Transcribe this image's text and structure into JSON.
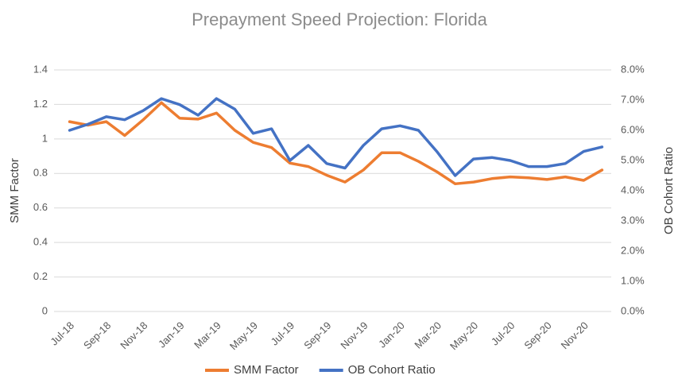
{
  "chart_data": {
    "type": "line",
    "title": "Prepayment Speed Projection: Florida",
    "y_label": "SMM Factor",
    "y2_label": "OB Cohort Ratio",
    "categories": [
      "Jul-18",
      null,
      "Sep-18",
      null,
      "Nov-18",
      null,
      "Jan-19",
      null,
      "Mar-19",
      null,
      "May-19",
      null,
      "Jul-19",
      null,
      "Sep-19",
      null,
      "Nov-19",
      null,
      "Jan-20",
      null,
      "Mar-20",
      null,
      "May-20",
      null,
      "Jul-20",
      null,
      "Sep-20",
      null,
      "Nov-20",
      null
    ],
    "series": [
      {
        "name": "SMM Factor",
        "color": "#ed7d31",
        "values": [
          1.1,
          1.08,
          1.1,
          1.02,
          1.11,
          1.21,
          1.12,
          1.115,
          1.15,
          1.05,
          0.98,
          0.95,
          0.86,
          0.84,
          0.79,
          0.75,
          0.82,
          0.92,
          0.92,
          0.87,
          0.81,
          0.74,
          0.75,
          0.77,
          0.78,
          0.775,
          0.765,
          0.78,
          0.76,
          0.82
        ]
      },
      {
        "name": "OB Cohort Ratio",
        "color": "#4472c4",
        "axis": "y2",
        "values": [
          6.0,
          6.2,
          6.45,
          6.35,
          6.65,
          7.05,
          6.85,
          6.5,
          7.05,
          6.7,
          5.9,
          6.05,
          5.0,
          5.5,
          4.9,
          4.75,
          5.5,
          6.05,
          6.15,
          6.0,
          5.3,
          4.5,
          5.05,
          5.1,
          5.0,
          4.8,
          4.8,
          4.9,
          5.3,
          5.45
        ]
      }
    ],
    "ylim": [
      0,
      1.4
    ],
    "yticks": [
      0,
      0.2,
      0.4,
      0.6,
      0.8,
      1,
      1.2,
      1.4
    ],
    "y2lim": [
      0,
      8
    ],
    "y2ticks": [
      {
        "value": 0,
        "label": "0.0%"
      },
      {
        "value": 1,
        "label": "1.0%"
      },
      {
        "value": 2,
        "label": "2.0%"
      },
      {
        "value": 3,
        "label": "3.0%"
      },
      {
        "value": 4,
        "label": "4.0%"
      },
      {
        "value": 5,
        "label": "5.0%"
      },
      {
        "value": 6,
        "label": "6.0%"
      },
      {
        "value": 7,
        "label": "7.0%"
      },
      {
        "value": 8,
        "label": "8.0%"
      }
    ],
    "grid": true,
    "legend": "bottom"
  }
}
